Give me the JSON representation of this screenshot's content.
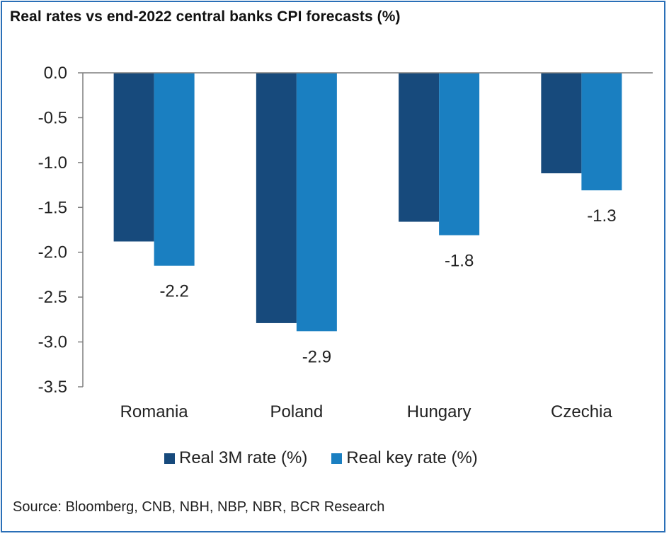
{
  "title": "Real rates vs end-2022 central banks CPI forecasts (%)",
  "source": "Source: Bloomberg, CNB, NBH, NBP, NBR, BCR Research",
  "chart_data": {
    "type": "bar",
    "categories": [
      "Romania",
      "Poland",
      "Hungary",
      "Czechia"
    ],
    "series": [
      {
        "name": "Real 3M rate (%)",
        "values": [
          -1.88,
          -2.79,
          -1.66,
          -1.12
        ],
        "color": "#174a7c"
      },
      {
        "name": "Real key rate (%)",
        "values": [
          -2.15,
          -2.88,
          -1.81,
          -1.31
        ],
        "color": "#1a7fc1"
      }
    ],
    "data_labels": [
      "-2.2",
      "-2.9",
      "-1.8",
      "-1.3"
    ],
    "ylim": [
      -3.5,
      0.0
    ],
    "yticks": [
      "0.0",
      "-0.5",
      "-1.0",
      "-1.5",
      "-2.0",
      "-2.5",
      "-3.0",
      "-3.5"
    ],
    "legend_position": "bottom",
    "grid": false
  }
}
